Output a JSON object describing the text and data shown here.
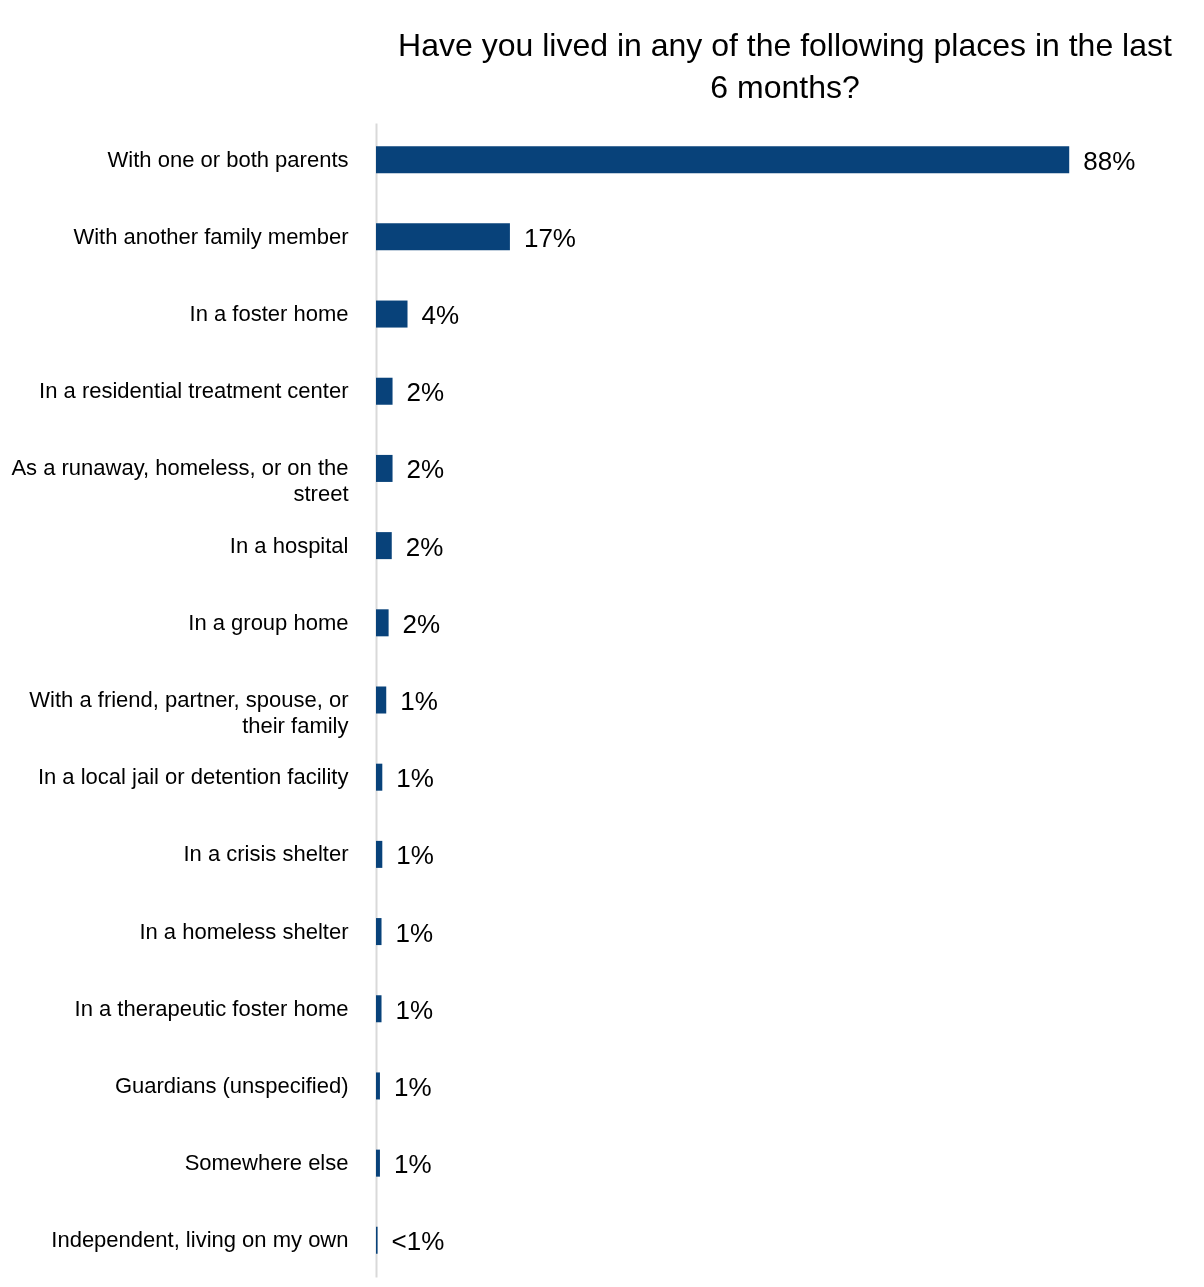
{
  "chart_data": {
    "type": "bar",
    "orientation": "horizontal",
    "title": "Have you lived in any of the following places in the last 6 months?",
    "categories": [
      "With one or both parents",
      "With another family member",
      "In a foster home",
      "In a residential treatment center",
      "As a runaway, homeless, or on the street",
      "In a hospital",
      "In a group home",
      "With a friend, partner, spouse, or their family",
      "In a local jail or detention facility",
      "In a crisis shelter",
      "In a homeless shelter",
      "In a therapeutic foster home",
      "Guardians (unspecified)",
      "Somewhere else",
      "Independent, living on my own"
    ],
    "values": [
      88,
      17,
      4,
      2.1,
      2.1,
      2,
      1.6,
      1.3,
      0.8,
      0.8,
      0.7,
      0.7,
      0.5,
      0.5,
      0.2
    ],
    "value_labels": [
      "88%",
      "17%",
      "4%",
      "2%",
      "2%",
      "2%",
      "2%",
      "1%",
      "1%",
      "1%",
      "1%",
      "1%",
      "1%",
      "1%",
      "<1%"
    ],
    "color": "#08427a"
  }
}
